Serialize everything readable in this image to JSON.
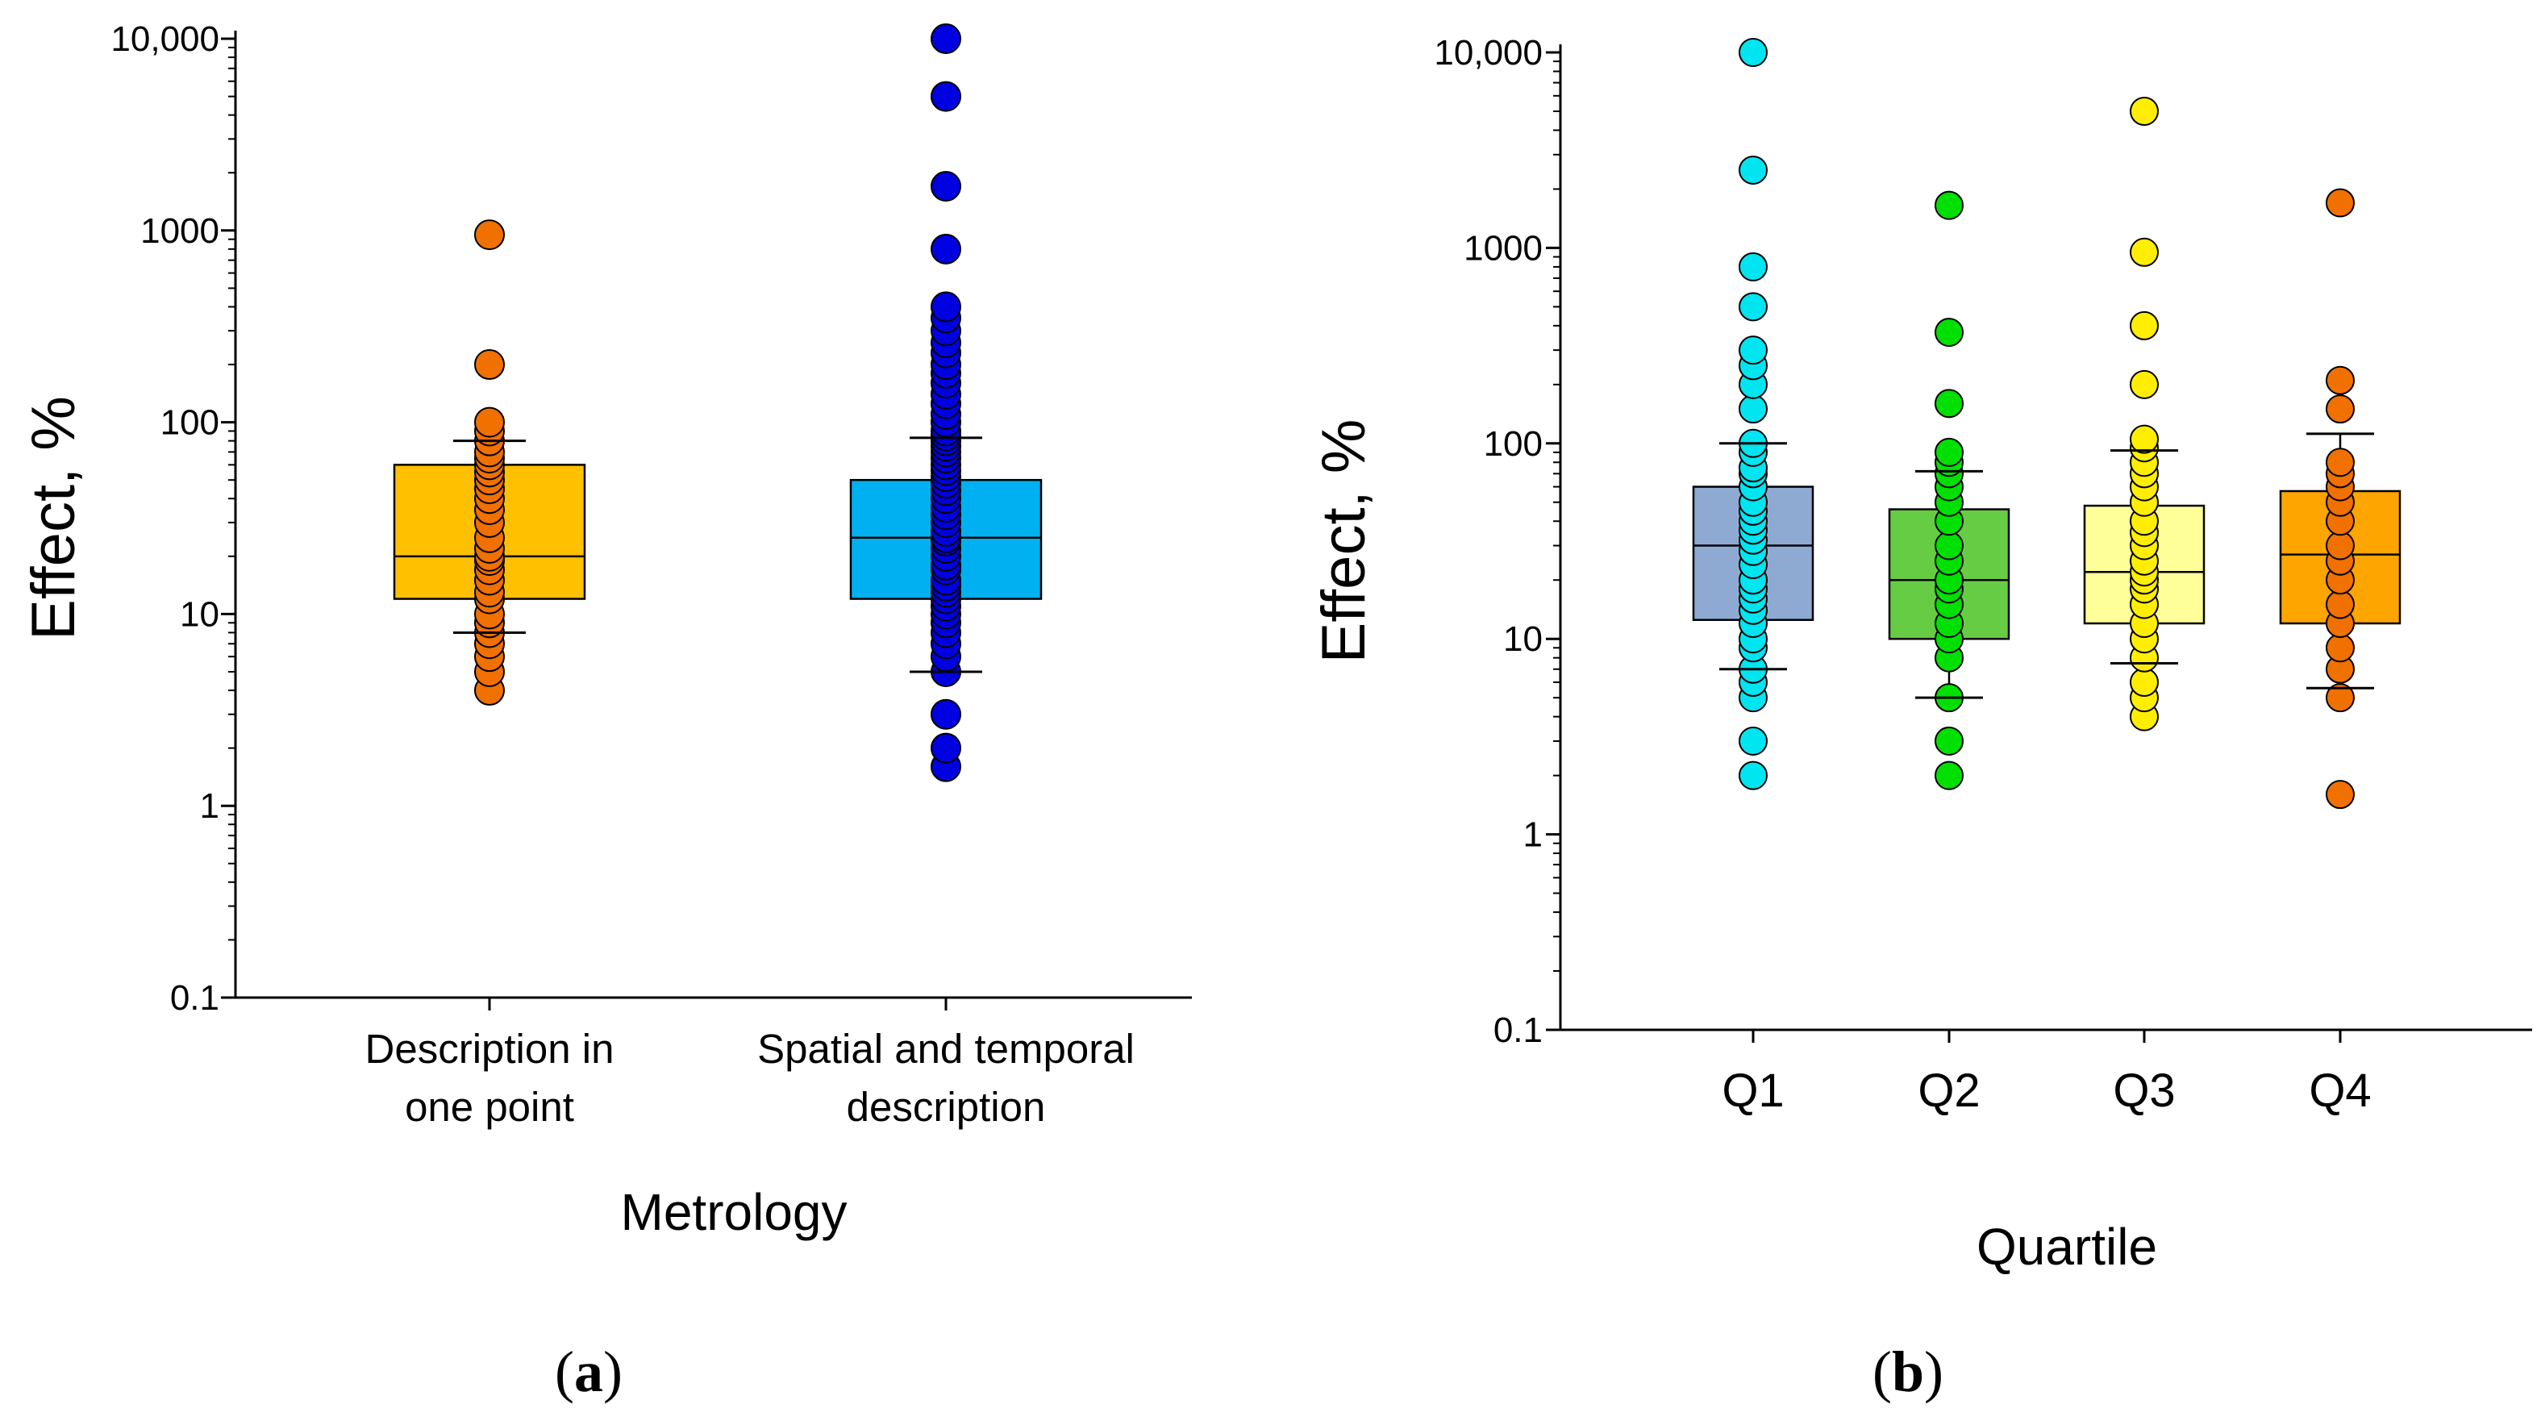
{
  "panel_labels": {
    "a": {
      "open": "(",
      "letter": "a",
      "close": ")"
    },
    "b": {
      "open": "(",
      "letter": "b",
      "close": ")"
    }
  },
  "chart_data": [
    {
      "type": "box",
      "panel": "a",
      "title": "",
      "xlabel": "Metrology",
      "ylabel": "Effect, %",
      "yscale": "log",
      "ylim": [
        0.1,
        10000
      ],
      "yticks": [
        0.1,
        1,
        10,
        100,
        1000,
        10000
      ],
      "ytick_labels": [
        "0.1",
        "1",
        "10",
        "100",
        "1000",
        "10,000"
      ],
      "categories": [
        [
          "Description in",
          "one point"
        ],
        [
          "Spatial and temporal",
          "description"
        ]
      ],
      "grid": false,
      "groups": [
        {
          "box_color": "#ffc000",
          "point_color": "#f07000",
          "q1": 12,
          "median": 20,
          "q3": 60,
          "whisker_low": 8,
          "whisker_high": 80,
          "points": [
            4,
            5,
            6,
            7,
            8,
            9,
            10,
            12,
            13,
            15,
            17,
            19,
            20,
            22,
            25,
            30,
            35,
            40,
            45,
            50,
            55,
            60,
            65,
            70,
            80,
            90,
            100,
            200,
            950
          ]
        },
        {
          "box_color": "#00b0f0",
          "point_color": "#0000e0",
          "q1": 12,
          "median": 25,
          "q3": 50,
          "whisker_low": 5,
          "whisker_high": 83,
          "points": [
            1.6,
            2,
            3,
            5,
            6,
            7,
            8,
            9,
            10,
            11,
            12,
            13,
            14,
            15,
            17,
            18,
            20,
            22,
            24,
            25,
            27,
            30,
            33,
            36,
            40,
            44,
            48,
            52,
            56,
            60,
            65,
            70,
            75,
            80,
            85,
            90,
            100,
            110,
            125,
            140,
            160,
            180,
            200,
            230,
            260,
            300,
            350,
            400,
            800,
            1700,
            5000,
            10000
          ]
        }
      ]
    },
    {
      "type": "box",
      "panel": "b",
      "title": "",
      "xlabel": "Quartile",
      "ylabel": "Effect, %",
      "yscale": "log",
      "ylim": [
        0.1,
        10000
      ],
      "yticks": [
        0.1,
        1,
        10,
        100,
        1000,
        10000
      ],
      "ytick_labels": [
        "0.1",
        "1",
        "10",
        "100",
        "1000",
        "10,000"
      ],
      "categories": [
        [
          "Q1"
        ],
        [
          "Q2"
        ],
        [
          "Q3"
        ],
        [
          "Q4"
        ]
      ],
      "grid": false,
      "groups": [
        {
          "box_color": "#8eaad2",
          "point_color": "#00e5f0",
          "q1": 12.5,
          "median": 30,
          "q3": 60,
          "whisker_low": 7,
          "whisker_high": 100,
          "points": [
            2,
            3,
            5,
            6,
            7,
            9,
            10,
            12,
            14,
            16,
            18,
            20,
            24,
            28,
            32,
            36,
            40,
            45,
            50,
            60,
            70,
            75,
            90,
            100,
            150,
            200,
            250,
            300,
            500,
            800,
            2500,
            10000
          ]
        },
        {
          "box_color": "#66cc44",
          "point_color": "#00e000",
          "q1": 10,
          "median": 20,
          "q3": 46,
          "whisker_low": 5,
          "whisker_high": 72,
          "points": [
            2,
            3,
            5,
            8,
            10,
            12,
            15,
            18,
            20,
            25,
            30,
            40,
            50,
            60,
            70,
            80,
            90,
            160,
            370,
            1650
          ]
        },
        {
          "box_color": "#ffff99",
          "point_color": "#ffee00",
          "q1": 12,
          "median": 22,
          "q3": 48,
          "whisker_low": 7.5,
          "whisker_high": 92,
          "points": [
            4,
            5,
            6,
            8,
            10,
            12,
            15,
            18,
            20,
            22,
            25,
            30,
            35,
            40,
            50,
            60,
            70,
            80,
            95,
            105,
            200,
            400,
            950,
            5000
          ]
        },
        {
          "box_color": "#ffa500",
          "point_color": "#f07000",
          "q1": 12,
          "median": 27,
          "q3": 57,
          "whisker_low": 5.6,
          "whisker_high": 112,
          "points": [
            1.6,
            5,
            7,
            9,
            12,
            15,
            20,
            25,
            30,
            40,
            50,
            60,
            70,
            80,
            150,
            210,
            1700
          ]
        }
      ]
    }
  ]
}
